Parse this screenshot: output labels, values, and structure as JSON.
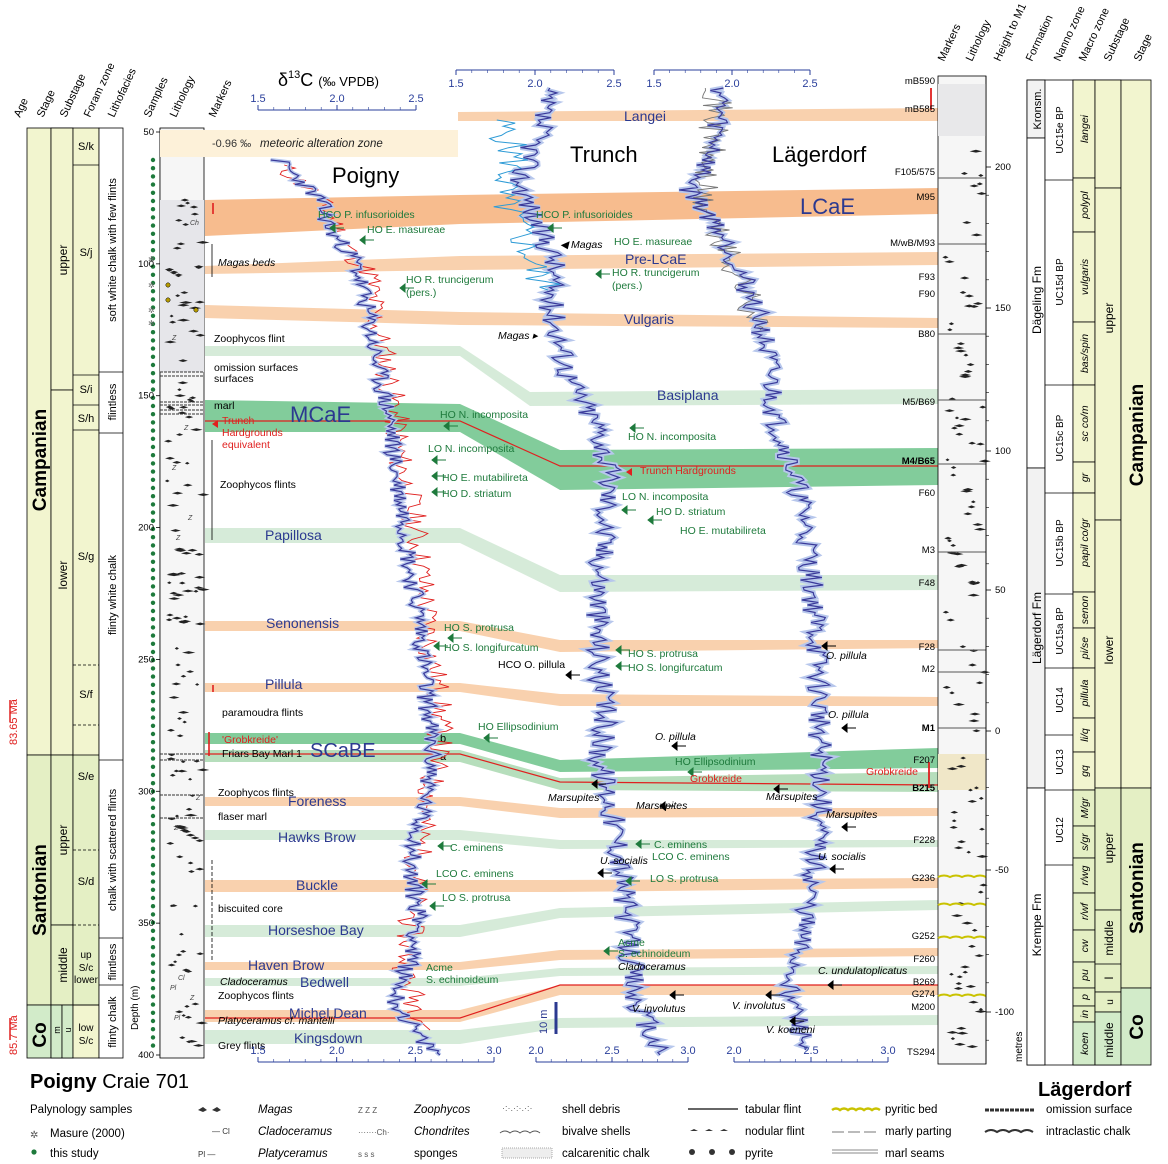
{
  "section_left": {
    "name_bold": "Poigny",
    "name_rest": " Craie 701",
    "headers": [
      "Age",
      "Stage",
      "Substage",
      "Foram zone",
      "Lithofacies",
      "Samples",
      "Lithology",
      "Markers"
    ],
    "stages": [
      "Campanian",
      "Santonian",
      "Co"
    ],
    "substages": [
      "upper",
      "lower",
      "upper",
      "middle",
      "up",
      "lower",
      "m",
      "u"
    ],
    "ages": [
      "83.65 Ma",
      "85.7 Ma"
    ],
    "foram_zones": [
      "S/k",
      "S/j",
      "S/i",
      "S/h",
      "S/g",
      "S/f",
      "S/e",
      "S/d",
      "S/c",
      "low S/c"
    ],
    "lithofacies": [
      "soft white chalk with few flints",
      "flintless",
      "flinty white chalk",
      "chalk with scattered flints",
      "flintless",
      "flinty chalk"
    ],
    "depth_label": "Depth (m)",
    "depth_ticks": [
      "50",
      "100",
      "150",
      "200",
      "250",
      "300",
      "350",
      "400"
    ],
    "litho_markers": [
      "Magas beds",
      "Zoophycos flint",
      "omission surfaces",
      "marl",
      "Zoophycos flints",
      "paramoudra flints",
      "'Grobkreide'",
      "Friars Bay Marl 1",
      "Zoophycos flints",
      "flaser marl",
      "biscuited core",
      "Cladoceramus",
      "Zoophycos flints",
      "Platyceramus cf. mantelli",
      "Grey flints"
    ]
  },
  "isotope_axis": {
    "title": "δ13C (‰ VPDB)",
    "left_ticks": [
      "1.5",
      "2.0",
      "2.5"
    ],
    "bottom_ticks": [
      "1.5",
      "2.0",
      "2.5",
      "3.0"
    ],
    "trunch_ticks": [
      "1.5",
      "2.0",
      "2.5"
    ],
    "lager_ticks": [
      "1.5",
      "2.0",
      "2.5"
    ],
    "trunch_bottom": [
      "2.0",
      "2.5",
      "3.0"
    ],
    "lager_bottom": [
      "2.0",
      "2.5",
      "3.0"
    ]
  },
  "curves": {
    "poigny": "Poigny",
    "trunch": "Trunch",
    "lager": "Lägerdorf"
  },
  "meteoric": {
    "value": "-0.96 ‰",
    "label": "meteoric alteration zone"
  },
  "events": {
    "langei": "Langei",
    "lcae": "LCaE",
    "prelcae": "Pre-LCaE",
    "vulgaris": "Vulgaris",
    "basiplana": "Basiplana",
    "mcae": "MCaE",
    "papillosa": "Papillosa",
    "senonensis": "Senonensis",
    "pillula": "Pillula",
    "scabe": "SCaBE",
    "foreness": "Foreness",
    "hawks": "Hawks Brow",
    "buckle": "Buckle",
    "horseshoe": "Horseshoe Bay",
    "haven": "Haven Brow",
    "bedwell": "Bedwell",
    "micheldean": "Michel Dean",
    "kingsdown": "Kingsdown"
  },
  "bio_markers": {
    "hco_infus": "HCO P. infusorioides",
    "ho_masur": "HO E. masureae",
    "ho_trunc": "HO R. truncigerum",
    "pers": "(pers.)",
    "ho_ninc": "HO N. incomposita",
    "lo_ninc": "LO N. incomposita",
    "ho_mutab": "HO E. mutabilireta",
    "ho_striat": "HO D. striatum",
    "trunch_hg": "Trunch Hardgrounds equivalent",
    "trunch_hg2": "Trunch Hardgrounds",
    "ho_protr": "HO S. protrusa",
    "ho_longi": "HO S. longifurcatum",
    "hco_pill": "HCO O. pillula",
    "ho_ellip": "HO Ellipsodinium",
    "c_emin": "C. eminens",
    "lco_emin": "LCO C. eminens",
    "lo_protr": "LO S. protrusa",
    "acme": "Acme",
    "s_echin": "S. echinoideum",
    "magas": "Magas",
    "o_pillula": "O. pillula",
    "marsupites": "Marsupites",
    "u_socialis": "U. socialis",
    "cladoceramus": "Cladoceramus",
    "c_undul": "C. undulatoplicatus",
    "v_invol": "V. involutus",
    "v_koen": "V. koeneni",
    "grobkreide": "Grobkreide",
    "scale": "10 m"
  },
  "section_right": {
    "name": "Lägerdorf",
    "headers": [
      "Markers",
      "Lithology",
      "Height to M1",
      "Formation",
      "Nanno zone",
      "Macro zone",
      "Substage",
      "Stage"
    ],
    "markers": [
      "mB590",
      "mB585",
      "F105/575",
      "M95",
      "M/wB/M93",
      "F93",
      "F90",
      "B80",
      "M5/B69",
      "M4/B65",
      "F60",
      "M3",
      "F48",
      "F28",
      "M2",
      "M1",
      "F207",
      "B215",
      "F228",
      "G236",
      "G252",
      "F260",
      "B269",
      "G274",
      "M200",
      "TS294"
    ],
    "height_ticks": [
      "200",
      "150",
      "100",
      "50",
      "0",
      "-50",
      "-100"
    ],
    "height_unit": "metres",
    "formations": [
      "Kronsm.",
      "Dägeling Fm",
      "Lägerdorf Fm",
      "Krempe Fm"
    ],
    "nanno": [
      "UC15e BP",
      "UC15d BP",
      "UC15c BP",
      "UC15b BP",
      "UC15a BP",
      "UC14",
      "UC13",
      "UC12"
    ],
    "macro": [
      "langei",
      "polypl",
      "vulgaris",
      "bas/spin",
      "sc co/m",
      "gr",
      "papil co/gr",
      "senon",
      "pi/se",
      "pillula",
      "li/q",
      "gq",
      "M/gr",
      "s/gr",
      "r/wg",
      "r/wf",
      "cw",
      "pu",
      "p",
      "in",
      "koen"
    ],
    "substages": [
      "upper",
      "lower",
      "upper",
      "middle",
      "l",
      "u",
      "middle"
    ],
    "stages": [
      "Campanian",
      "Santonian",
      "Co"
    ]
  },
  "legend": {
    "title": "Palynology samples",
    "masure": "Masure (2000)",
    "this_study": "this study",
    "items": [
      "Magas",
      "Cladoceramus",
      "Platyceramus",
      "Zoophycos",
      "Chondrites",
      "sponges",
      "shell debris",
      "bivalve shells",
      "calcarenitic chalk",
      "tabular flint",
      "nodular flint",
      "pyrite",
      "pyritic bed",
      "marly parting",
      "marl seams",
      "omission surface",
      "intraclastic chalk"
    ]
  },
  "colors": {
    "orange": "#f8c9a0",
    "orange_dark": "#f6b07a",
    "green": "#a9d8b0",
    "green_dark": "#6cc38a",
    "pale_green": "#cfe8d2",
    "curve": "#3a3a9a",
    "halo": "#b7c7ec",
    "red": "#e0201f",
    "bio": "#1e7a3c",
    "campanian": "#f2f5cf",
    "santonian": "#e4efc4",
    "coniacian": "#d2ebc9"
  }
}
